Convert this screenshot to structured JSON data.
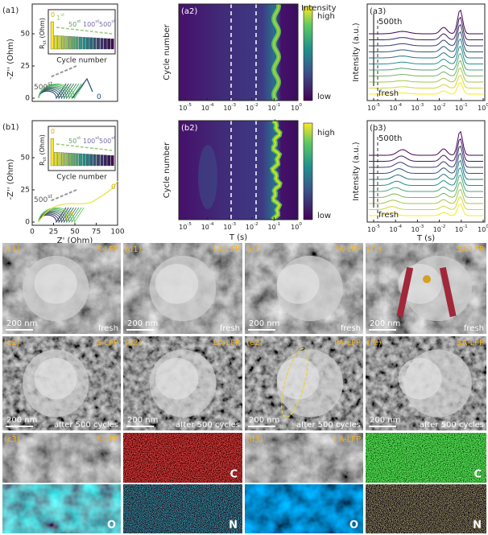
{
  "a1": {
    "label": "(a1)",
    "sample": "LA-LFP",
    "y_label": "-Z'' (Ohm)",
    "y_ticks": [
      "0",
      "25",
      "50"
    ],
    "inset": {
      "y_label": {
        "t": "R",
        "sub": "ct",
        "rest": " (Ohm)"
      },
      "x_label": "Cycle number",
      "notes": [
        {
          "t": "0"
        },
        {
          "t": "1",
          "sup": "st"
        },
        {
          "t": "50",
          "sup": "st"
        },
        {
          "t": "100",
          "sup": "st"
        },
        {
          "t": "500",
          "sup": "st"
        }
      ]
    },
    "notes": [
      {
        "t": "500",
        "sup": "st"
      },
      {
        "t": "0"
      }
    ]
  },
  "b1": {
    "label": "(b1)",
    "sample": "SA-LFP",
    "y_label": "-Z'' (Ohm)",
    "y_ticks": [
      "0",
      "25",
      "50"
    ],
    "inset": {
      "y_label": {
        "t": "R",
        "sub": "ct",
        "rest": " (Ohm)"
      },
      "x_label": "Cycle number",
      "notes": [
        {
          "t": "0"
        },
        {
          "t": "50",
          "sup": "st"
        },
        {
          "t": "100",
          "sup": "st"
        },
        {
          "t": "500",
          "sup": "st"
        }
      ]
    },
    "notes": [
      {
        "t": "500",
        "sup": "st"
      },
      {
        "t": "1",
        "sup": "st"
      },
      {
        "t": "0"
      }
    ],
    "x_label": "Z' (Ohm)",
    "x_ticks": [
      "0",
      "25",
      "50",
      "75",
      "100"
    ]
  },
  "a2": {
    "label": "(a2)",
    "y_label": "Cycle number",
    "colorbar": {
      "title": "Intensity",
      "high": "high",
      "low": "low"
    },
    "x_ticks": [
      {
        "t": "10",
        "sup": "-5"
      },
      {
        "t": "10",
        "sup": "-4"
      },
      {
        "t": "10",
        "sup": "-3"
      },
      {
        "t": "10",
        "sup": "-2"
      },
      {
        "t": "10",
        "sup": "-1"
      },
      {
        "t": "10",
        "sup": "0"
      }
    ]
  },
  "b2": {
    "label": "(b2)",
    "y_label": "Cycle number",
    "colorbar": {
      "high": "high",
      "low": "low"
    },
    "x_label": "T (s)",
    "x_ticks": [
      {
        "t": "10",
        "sup": "-5"
      },
      {
        "t": "10",
        "sup": "-4"
      },
      {
        "t": "10",
        "sup": "-3"
      },
      {
        "t": "10",
        "sup": "-2"
      },
      {
        "t": "10",
        "sup": "-1"
      },
      {
        "t": "10",
        "sup": "0"
      }
    ]
  },
  "a3": {
    "label": "(a3)",
    "y_label": "Intensity (a.u.)",
    "top": "500th",
    "bottom": "fresh",
    "x_ticks": [
      {
        "t": "10",
        "sup": "-5"
      },
      {
        "t": "10",
        "sup": "-4"
      },
      {
        "t": "10",
        "sup": "-3"
      },
      {
        "t": "10",
        "sup": "-2"
      },
      {
        "t": "10",
        "sup": "-1"
      },
      {
        "t": "10",
        "sup": "0"
      }
    ]
  },
  "b3": {
    "label": "(b3)",
    "y_label": "Intensity (a.u.)",
    "top": "500th",
    "bottom": "fresh",
    "x_label": "T (s)",
    "x_ticks": [
      {
        "t": "10",
        "sup": "-5"
      },
      {
        "t": "10",
        "sup": "-4"
      },
      {
        "t": "10",
        "sup": "-3"
      },
      {
        "t": "10",
        "sup": "-2"
      },
      {
        "t": "10",
        "sup": "-1"
      },
      {
        "t": "10",
        "sup": "0"
      }
    ]
  },
  "sem": [
    [
      {
        "label": "(c1)",
        "sample": "S-LFP",
        "scale": "200 nm",
        "condition": "fresh"
      },
      {
        "label": "(d1)",
        "sample": "LA-LFP",
        "scale": "200 nm",
        "condition": "fresh"
      },
      {
        "label": "(e1)",
        "sample": "PA-LFP",
        "scale": "200 nm",
        "condition": "fresh"
      },
      {
        "label": "(f1)",
        "sample": "SA-LFP",
        "scale": "200 nm",
        "condition": "fresh"
      }
    ],
    [
      {
        "label": "(c2)",
        "sample": "S-LFP",
        "scale": "200 nm",
        "condition": "after 500 cycles"
      },
      {
        "label": "(d2)",
        "sample": "LA-LFP",
        "scale": "200 nm",
        "condition": "after 500 cycles"
      },
      {
        "label": "(e2)",
        "sample": "PA-LFP",
        "scale": "200 nm",
        "condition": "after 500 cycles"
      },
      {
        "label": "(f2)",
        "sample": "SA-LFP",
        "scale": "200 nm",
        "condition": "after 500 cycles"
      }
    ]
  ],
  "eds": [
    [
      {
        "label": "(c3)",
        "sample": "S-LFP"
      },
      {
        "element": "C"
      },
      {
        "label": "(d3)",
        "sample": "LA-LFP"
      },
      {
        "element": "C"
      }
    ],
    [
      {
        "element": "O"
      },
      {
        "element": "N"
      },
      {
        "element": "O"
      },
      {
        "element": "N"
      }
    ]
  ]
}
